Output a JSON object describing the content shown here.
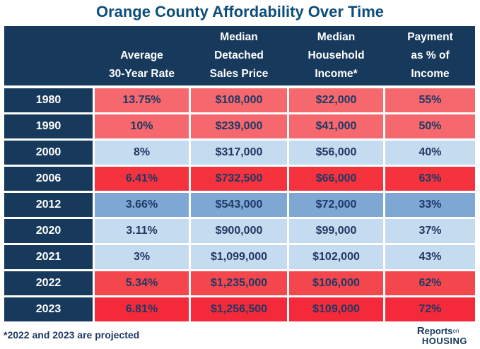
{
  "title": "Orange County Affordability Over Time",
  "colors": {
    "title": "#0D4D7A",
    "navy": "#17395C",
    "textNavy": "#1F3864",
    "white": "#FFFFFF",
    "tones": {
      "salmon": "#F5696E",
      "red_bright": "#F4333E",
      "red_medium": "#F4474D",
      "red_deep": "#F42A3B",
      "light_blue": "#C5DBEF",
      "medium_blue": "#7FA7D3"
    }
  },
  "table": {
    "columns": [
      "",
      "Average\n30-Year Rate",
      "Median\nDetached\nSales Price",
      "Median\nHousehold\nIncome*",
      "Payment\nas % of\nIncome"
    ],
    "rows": [
      {
        "year": "1980",
        "rate": "13.75%",
        "price": "$108,000",
        "income": "$22,000",
        "payment": "55%",
        "tone": "salmon"
      },
      {
        "year": "1990",
        "rate": "10%",
        "price": "$239,000",
        "income": "$41,000",
        "payment": "50%",
        "tone": "salmon"
      },
      {
        "year": "2000",
        "rate": "8%",
        "price": "$317,000",
        "income": "$56,000",
        "payment": "40%",
        "tone": "light_blue"
      },
      {
        "year": "2006",
        "rate": "6.41%",
        "price": "$732,500",
        "income": "$66,000",
        "payment": "63%",
        "tone": "red_bright"
      },
      {
        "year": "2012",
        "rate": "3.66%",
        "price": "$543,000",
        "income": "$72,000",
        "payment": "33%",
        "tone": "medium_blue"
      },
      {
        "year": "2020",
        "rate": "3.11%",
        "price": "$900,000",
        "income": "$99,000",
        "payment": "37%",
        "tone": "light_blue"
      },
      {
        "year": "2021",
        "rate": "3%",
        "price": "$1,099,000",
        "income": "$102,000",
        "payment": "43%",
        "tone": "light_blue"
      },
      {
        "year": "2022",
        "rate": "5.34%",
        "price": "$1,235,000",
        "income": "$106,000",
        "payment": "62%",
        "tone": "red_medium"
      },
      {
        "year": "2023",
        "rate": "6.81%",
        "price": "$1,256,500",
        "income": "$109,000",
        "payment": "72%",
        "tone": "red_deep"
      }
    ]
  },
  "footnote": "*2022 and 2023 are projected",
  "logo": {
    "line1_r": "R",
    "line1_rest": "eports",
    "line1_small": "on",
    "line2": "HOUSING"
  },
  "chart_data": {
    "type": "table",
    "title": "Orange County Affordability Over Time",
    "categories": [
      "1980",
      "1990",
      "2000",
      "2006",
      "2012",
      "2020",
      "2021",
      "2022",
      "2023"
    ],
    "series": [
      {
        "name": "Average 30-Year Rate (%)",
        "values": [
          13.75,
          10,
          8,
          6.41,
          3.66,
          3.11,
          3,
          5.34,
          6.81
        ]
      },
      {
        "name": "Median Detached Sales Price ($)",
        "values": [
          108000,
          239000,
          317000,
          732500,
          543000,
          900000,
          1099000,
          1235000,
          1256500
        ]
      },
      {
        "name": "Median Household Income ($)",
        "values": [
          22000,
          41000,
          56000,
          66000,
          72000,
          99000,
          102000,
          106000,
          109000
        ]
      },
      {
        "name": "Payment as % of Income (%)",
        "values": [
          55,
          50,
          40,
          63,
          33,
          37,
          43,
          62,
          72
        ]
      }
    ],
    "annotations": [
      "*2022 and 2023 are projected"
    ]
  }
}
